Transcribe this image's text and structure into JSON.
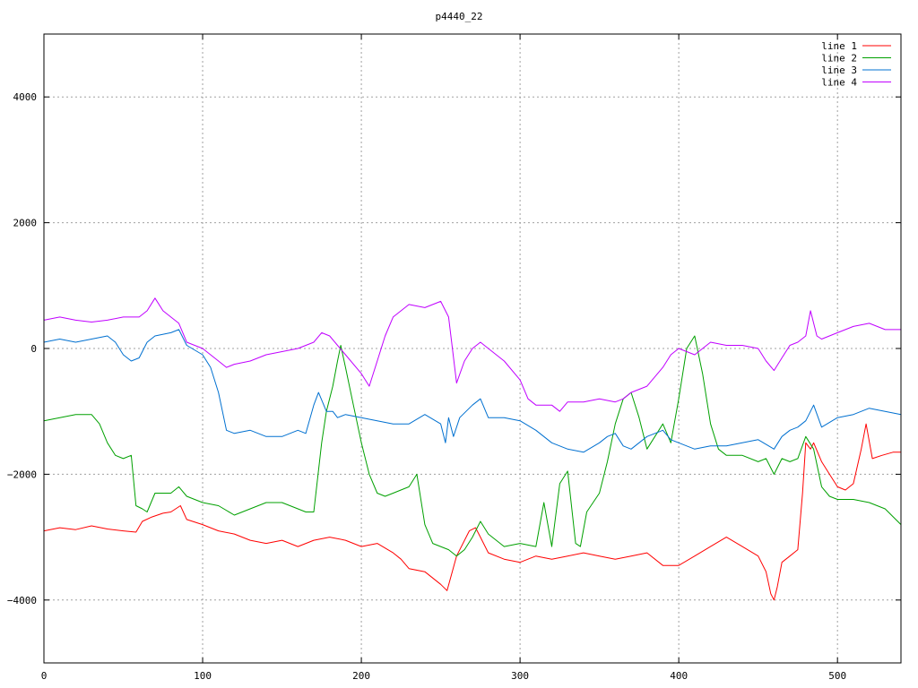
{
  "chart_data": {
    "type": "line",
    "title": "p4440_22",
    "xlabel": "",
    "ylabel": "",
    "xlim": [
      0,
      540
    ],
    "ylim": [
      -5000,
      5000
    ],
    "xticks": [
      0,
      100,
      200,
      300,
      400,
      500
    ],
    "yticks": [
      -4000,
      -2000,
      0,
      2000,
      4000
    ],
    "grid": true,
    "legend_position": "top-right",
    "series": [
      {
        "name": "line 1",
        "color": "#ff0000",
        "x": [
          0,
          10,
          20,
          30,
          40,
          50,
          58,
          62,
          68,
          75,
          80,
          86,
          90,
          100,
          110,
          120,
          130,
          140,
          150,
          160,
          170,
          180,
          190,
          200,
          210,
          220,
          225,
          230,
          240,
          250,
          254,
          260,
          268,
          272,
          275,
          280,
          290,
          300,
          310,
          320,
          330,
          340,
          350,
          360,
          370,
          380,
          390,
          400,
          410,
          420,
          430,
          440,
          450,
          455,
          458,
          460,
          462,
          465,
          470,
          475,
          478,
          480,
          483,
          485,
          490,
          495,
          500,
          505,
          510,
          515,
          518,
          522,
          528,
          535,
          540
        ],
        "y": [
          -2900,
          -2850,
          -2880,
          -2820,
          -2870,
          -2900,
          -2920,
          -2750,
          -2680,
          -2620,
          -2600,
          -2500,
          -2720,
          -2800,
          -2900,
          -2950,
          -3050,
          -3100,
          -3050,
          -3150,
          -3050,
          -3000,
          -3050,
          -3150,
          -3100,
          -3250,
          -3350,
          -3500,
          -3550,
          -3750,
          -3850,
          -3300,
          -2900,
          -2850,
          -3000,
          -3250,
          -3350,
          -3400,
          -3300,
          -3350,
          -3300,
          -3250,
          -3300,
          -3350,
          -3300,
          -3250,
          -3450,
          -3450,
          -3300,
          -3150,
          -3000,
          -3150,
          -3300,
          -3550,
          -3900,
          -4000,
          -3800,
          -3400,
          -3300,
          -3200,
          -2300,
          -1500,
          -1600,
          -1500,
          -1800,
          -2000,
          -2200,
          -2250,
          -2150,
          -1600,
          -1200,
          -1750,
          -1700,
          -1650,
          -1650
        ]
      },
      {
        "name": "line 2",
        "color": "#00a000",
        "x": [
          0,
          10,
          20,
          30,
          35,
          40,
          45,
          50,
          55,
          58,
          62,
          65,
          70,
          80,
          85,
          90,
          100,
          110,
          120,
          130,
          140,
          150,
          160,
          165,
          170,
          175,
          178,
          182,
          185,
          187,
          190,
          195,
          200,
          205,
          210,
          215,
          220,
          230,
          235,
          240,
          245,
          255,
          260,
          265,
          270,
          275,
          280,
          290,
          300,
          310,
          315,
          320,
          325,
          330,
          335,
          338,
          342,
          350,
          355,
          360,
          365,
          370,
          375,
          380,
          390,
          395,
          400,
          405,
          410,
          415,
          420,
          425,
          430,
          440,
          450,
          455,
          460,
          465,
          470,
          475,
          480,
          485,
          490,
          495,
          500,
          510,
          520,
          530,
          540
        ],
        "y": [
          -1150,
          -1100,
          -1050,
          -1050,
          -1200,
          -1500,
          -1700,
          -1750,
          -1700,
          -2500,
          -2550,
          -2600,
          -2300,
          -2300,
          -2200,
          -2350,
          -2450,
          -2500,
          -2650,
          -2550,
          -2450,
          -2450,
          -2550,
          -2600,
          -2600,
          -1500,
          -1000,
          -600,
          -200,
          50,
          -300,
          -900,
          -1500,
          -2000,
          -2300,
          -2350,
          -2300,
          -2200,
          -2000,
          -2800,
          -3100,
          -3200,
          -3300,
          -3200,
          -3000,
          -2750,
          -2950,
          -3150,
          -3100,
          -3150,
          -2450,
          -3150,
          -2150,
          -1950,
          -3100,
          -3150,
          -2600,
          -2300,
          -1800,
          -1200,
          -800,
          -700,
          -1100,
          -1600,
          -1200,
          -1500,
          -800,
          0,
          200,
          -400,
          -1200,
          -1600,
          -1700,
          -1700,
          -1800,
          -1750,
          -2000,
          -1750,
          -1800,
          -1750,
          -1400,
          -1600,
          -2200,
          -2350,
          -2400,
          -2400,
          -2450,
          -2550,
          -2800
        ]
      },
      {
        "name": "line 3",
        "color": "#0070d0",
        "x": [
          0,
          10,
          20,
          30,
          40,
          45,
          50,
          55,
          60,
          65,
          70,
          80,
          85,
          90,
          100,
          105,
          110,
          115,
          120,
          130,
          140,
          150,
          160,
          165,
          170,
          173,
          178,
          182,
          185,
          190,
          200,
          210,
          220,
          230,
          240,
          250,
          253,
          255,
          258,
          262,
          270,
          275,
          280,
          290,
          300,
          310,
          320,
          330,
          340,
          350,
          355,
          360,
          365,
          370,
          380,
          390,
          395,
          400,
          410,
          420,
          430,
          440,
          450,
          460,
          465,
          470,
          475,
          480,
          485,
          490,
          500,
          510,
          520,
          530,
          540
        ],
        "y": [
          100,
          150,
          100,
          150,
          200,
          100,
          -100,
          -200,
          -150,
          100,
          200,
          250,
          300,
          50,
          -100,
          -300,
          -700,
          -1300,
          -1350,
          -1300,
          -1400,
          -1400,
          -1300,
          -1350,
          -900,
          -700,
          -1000,
          -1000,
          -1100,
          -1050,
          -1100,
          -1150,
          -1200,
          -1200,
          -1050,
          -1200,
          -1500,
          -1100,
          -1400,
          -1100,
          -900,
          -800,
          -1100,
          -1100,
          -1150,
          -1300,
          -1500,
          -1600,
          -1650,
          -1500,
          -1400,
          -1350,
          -1550,
          -1600,
          -1400,
          -1300,
          -1450,
          -1500,
          -1600,
          -1550,
          -1550,
          -1500,
          -1450,
          -1600,
          -1400,
          -1300,
          -1250,
          -1150,
          -900,
          -1250,
          -1100,
          -1050,
          -950,
          -1000,
          -1050
        ]
      },
      {
        "name": "line 4",
        "color": "#c000ff",
        "x": [
          0,
          10,
          20,
          30,
          40,
          50,
          60,
          65,
          70,
          75,
          80,
          85,
          90,
          100,
          110,
          115,
          120,
          130,
          140,
          150,
          160,
          170,
          175,
          180,
          185,
          190,
          200,
          205,
          210,
          215,
          220,
          230,
          240,
          250,
          255,
          260,
          265,
          270,
          275,
          280,
          290,
          300,
          305,
          310,
          320,
          325,
          330,
          340,
          350,
          360,
          365,
          370,
          380,
          390,
          395,
          400,
          410,
          420,
          430,
          440,
          450,
          455,
          460,
          465,
          470,
          475,
          480,
          483,
          487,
          490,
          500,
          510,
          520,
          530,
          540
        ],
        "y": [
          450,
          500,
          450,
          420,
          450,
          500,
          500,
          600,
          800,
          600,
          500,
          400,
          100,
          0,
          -200,
          -300,
          -250,
          -200,
          -100,
          -50,
          0,
          100,
          250,
          200,
          50,
          -100,
          -400,
          -600,
          -200,
          200,
          500,
          700,
          650,
          750,
          500,
          -550,
          -200,
          0,
          100,
          0,
          -200,
          -500,
          -800,
          -900,
          -900,
          -1000,
          -850,
          -850,
          -800,
          -850,
          -800,
          -700,
          -600,
          -300,
          -100,
          0,
          -100,
          100,
          50,
          50,
          0,
          -200,
          -350,
          -150,
          50,
          100,
          200,
          600,
          200,
          150,
          250,
          350,
          400,
          300,
          300
        ]
      }
    ]
  }
}
